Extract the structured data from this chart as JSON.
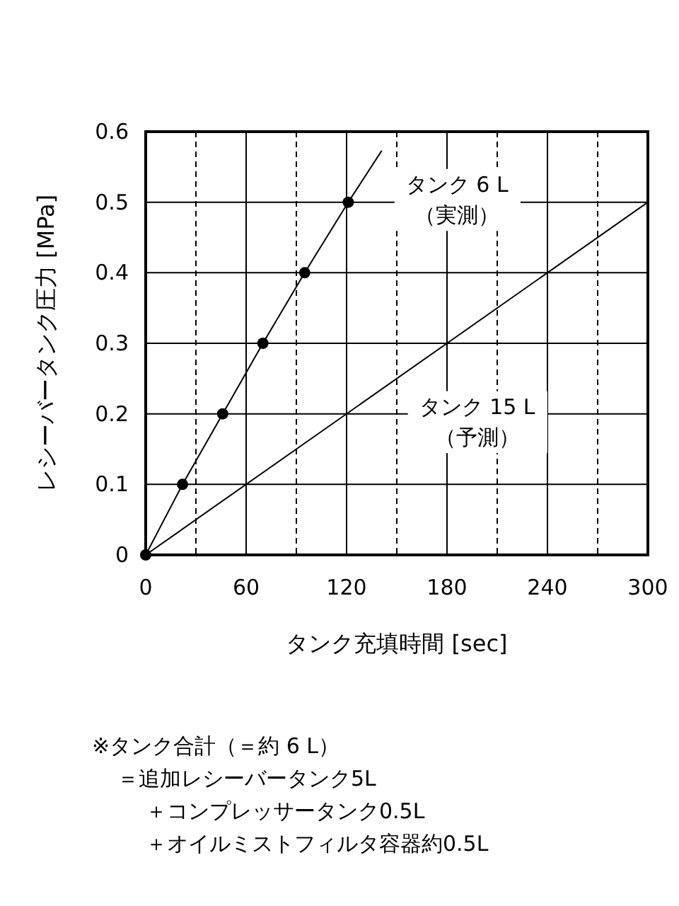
{
  "chart_data": {
    "type": "line",
    "xlabel": "タンク充填時間 [sec]",
    "ylabel": "レシーバータンク圧力 [MPa]",
    "xlim": [
      0,
      300
    ],
    "ylim": [
      0,
      0.6
    ],
    "xticks": [
      0,
      60,
      120,
      180,
      240,
      300
    ],
    "yticks": [
      0,
      0.1,
      0.2,
      0.3,
      0.4,
      0.5,
      0.6
    ],
    "grid": true,
    "series": [
      {
        "name": "タンク 6 L（実測）",
        "color": "#000000",
        "marker": "none",
        "x": [
          0,
          22,
          46,
          70,
          95,
          121,
          141
        ],
        "values": [
          0,
          0.1,
          0.2,
          0.3,
          0.4,
          0.5,
          0.573
        ]
      },
      {
        "type": "scatter",
        "color": "#000000",
        "marker": "circle",
        "x": [
          0,
          22,
          46,
          70,
          95,
          121
        ],
        "values": [
          0,
          0.1,
          0.2,
          0.3,
          0.4,
          0.5
        ]
      },
      {
        "name": "タンク 15 L（予測）",
        "color": "#000000",
        "marker": "none",
        "x": [
          0,
          300
        ],
        "values": [
          0,
          0.5
        ]
      }
    ],
    "ref_lines": [
      {
        "axis": "x",
        "value": 30,
        "line_style": "dashed"
      },
      {
        "axis": "x",
        "value": 90,
        "line_style": "dashed"
      },
      {
        "axis": "x",
        "value": 150,
        "line_style": "dashed"
      },
      {
        "axis": "x",
        "value": 210,
        "line_style": "dashed"
      },
      {
        "axis": "x",
        "value": 270,
        "line_style": "dashed"
      }
    ],
    "annotations": [
      "※タンク合計（＝約 6 L）",
      "＝追加レシーバータンク5L",
      "＋コンプレッサータンク0.5L",
      "＋オイルミストフィルタ容器約0.5L"
    ]
  }
}
